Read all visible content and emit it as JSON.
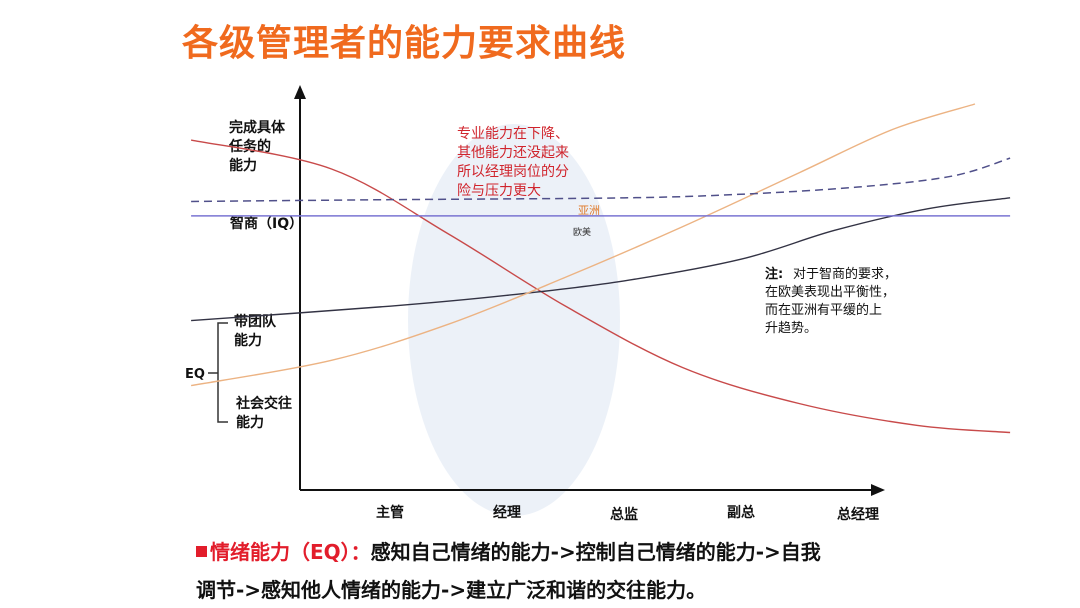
{
  "page": {
    "title": "各级管理者的能力要求曲线"
  },
  "chart_data": {
    "type": "line",
    "x": [
      "主管",
      "经理",
      "总监",
      "副总",
      "总经理"
    ],
    "y_axis_labels": [
      {
        "text": [
          "完成具体",
          "任务的",
          "能力"
        ]
      },
      {
        "text": [
          "智商（IQ）"
        ]
      },
      {
        "text": [
          "带团队",
          "能力"
        ]
      },
      {
        "text": [
          "社会交往",
          "能力"
        ]
      }
    ],
    "eq_label": "EQ",
    "series": [
      {
        "name": "",
        "color": "#c84a4a",
        "style": "solid",
        "values": [
          [
            -1.7,
            90
          ],
          [
            -0.5,
            82
          ],
          [
            0.5,
            64
          ],
          [
            1.5,
            44
          ],
          [
            2.5,
            27
          ],
          [
            3.5,
            17
          ],
          [
            4.5,
            11
          ],
          [
            5.3,
            9
          ]
        ]
      },
      {
        "name": "",
        "color": "#333344",
        "style": "solid",
        "values": [
          [
            -1.7,
            40
          ],
          [
            0,
            44
          ],
          [
            1,
            47
          ],
          [
            2,
            51
          ],
          [
            3,
            57
          ],
          [
            3.8,
            65
          ],
          [
            4.6,
            71
          ],
          [
            5.3,
            74
          ]
        ]
      },
      {
        "name": "",
        "color": "#ecb383",
        "style": "solid",
        "values": [
          [
            -1.7,
            22
          ],
          [
            -0.5,
            29
          ],
          [
            0.5,
            39
          ],
          [
            1.5,
            52
          ],
          [
            2.5,
            66
          ],
          [
            3.5,
            81
          ],
          [
            4.3,
            93
          ],
          [
            5.0,
            100
          ]
        ]
      },
      {
        "name": "欧美",
        "color": "#7a74d2",
        "style": "solid",
        "values": [
          [
            -1.7,
            69
          ],
          [
            5.3,
            69
          ]
        ]
      },
      {
        "name": "亚洲",
        "color": "#50508a",
        "style": "dashed",
        "values": [
          [
            -1.7,
            73
          ],
          [
            0,
            73.5
          ],
          [
            2,
            74
          ],
          [
            3,
            75
          ],
          [
            4,
            77
          ],
          [
            4.8,
            80
          ],
          [
            5.3,
            85
          ]
        ]
      }
    ],
    "highlight_text": [
      "专业能力在下降、",
      "其他能力还没起来",
      "所以经理岗位的分",
      "险与压力更大"
    ],
    "note": {
      "prefix": "注:",
      "lines": [
        "对于智商的要求，",
        "在欧美表现出平衡性，",
        "而在亚洲有平缓的上",
        "升趋势。"
      ]
    },
    "grid": false
  },
  "footer": {
    "label": "情绪能力（EQ）：",
    "line1_rest": "感知自己情绪的能力->控制自己情绪的能力->自我",
    "line2": "调节->感知他人情绪的能力->建立广泛和谐的交往能力。"
  }
}
